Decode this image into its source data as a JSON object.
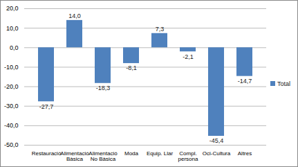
{
  "chart_data": {
    "type": "bar",
    "categories": [
      "Restauració",
      "Alimentació Bàsica",
      "Alimentació No Bàsica",
      "Moda",
      "Equip. Llar",
      "Compl. persona",
      "Oci-Cultura",
      "Altres"
    ],
    "series": [
      {
        "name": "Total",
        "color": "#4F81BD",
        "values": [
          -27.7,
          14.0,
          -18.3,
          -8.1,
          7.3,
          -2.1,
          -45.4,
          -14.7
        ],
        "value_labels": [
          "-27,7",
          "14,0",
          "-18,3",
          "-8,1",
          "7,3",
          "-2,1",
          "-45,4",
          "-14,7"
        ]
      }
    ],
    "ylim": [
      -50,
      20
    ],
    "yticks": [
      {
        "value": -50,
        "label": "-50,0"
      },
      {
        "value": -40,
        "label": "-40,0"
      },
      {
        "value": -30,
        "label": "-30,0"
      },
      {
        "value": -20,
        "label": "-20,0"
      },
      {
        "value": -10,
        "label": "-10,0"
      },
      {
        "value": 0,
        "label": "0,0"
      },
      {
        "value": 10,
        "label": "10,0"
      },
      {
        "value": 20,
        "label": "20,0"
      }
    ],
    "grid": true,
    "legend": "right",
    "data_labels": true
  }
}
